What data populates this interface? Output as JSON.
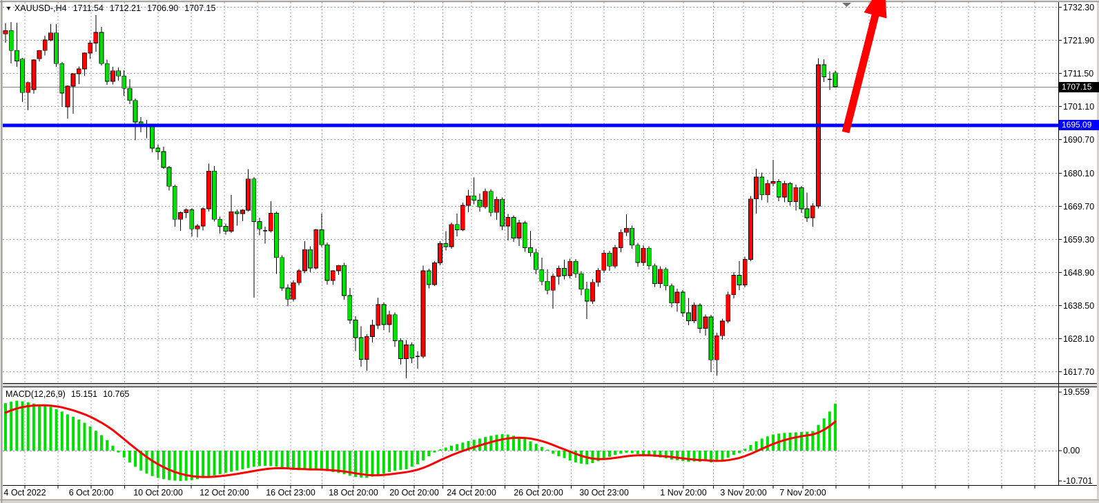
{
  "header": {
    "symbol": "XAUUSD-,H4",
    "open": "1711.54",
    "high": "1712.21",
    "low": "1706.90",
    "close": "1707.15"
  },
  "macd_panel": {
    "label": "MACD(12,26,9)",
    "macd_value": "15.151",
    "signal_value": "10.765",
    "axis_ticks": [
      "19.559",
      "0.00",
      "-10.701"
    ]
  },
  "price_axis": {
    "ticks": [
      "1732.30",
      "1721.90",
      "1711.50",
      "1701.10",
      "1690.70",
      "1680.10",
      "1669.70",
      "1659.30",
      "1648.90",
      "1638.50",
      "1628.10",
      "1617.70"
    ],
    "current_price_badge": "1707.15",
    "hline_badge": "1695.09"
  },
  "time_axis": {
    "labels": [
      {
        "text": "4 Oct 2022",
        "x": 36
      },
      {
        "text": "6 Oct 20:00",
        "x": 132
      },
      {
        "text": "10 Oct 20:00",
        "x": 229
      },
      {
        "text": "12 Oct 20:00",
        "x": 325
      },
      {
        "text": "16 Oct 23:00",
        "x": 421
      },
      {
        "text": "18 Oct 20:00",
        "x": 512
      },
      {
        "text": "20 Oct 20:00",
        "x": 600
      },
      {
        "text": "24 Oct 20:00",
        "x": 683
      },
      {
        "text": "26 Oct 20:00",
        "x": 780
      },
      {
        "text": "30 Oct 23:00",
        "x": 875
      },
      {
        "text": "1 Nov 20:00",
        "x": 990
      },
      {
        "text": "3 Nov 20:00",
        "x": 1077
      },
      {
        "text": "7 Nov 20:00",
        "x": 1163
      }
    ]
  },
  "annotations": {
    "trend_arrow": "up-arrow",
    "hline_price": 1695.09,
    "current_price": 1707.15
  },
  "colors": {
    "bull_body": "#ff0000",
    "bear_body": "#00e000",
    "wick": "#000000",
    "hline": "#0000ff",
    "current_price_line": "#808080",
    "grid": "#96a0ac",
    "macd_histogram": "#00e000",
    "macd_signal": "#ff0000",
    "badge_current_bg": "#000000",
    "badge_hline_bg": "#0000ff",
    "arrow": "#ff0000",
    "shift_marker": "#707070"
  },
  "chart_data": {
    "type": "candlestick",
    "symbol": "XAUUSD-",
    "timeframe": "H4",
    "title": "XAUUSD-,H4 1711.54 1712.21 1706.90 1707.15",
    "y_axis_range": [
      1613.0,
      1733.6
    ],
    "x_range": [
      "4 Oct 2022 00:00",
      "8 Nov 2022 20:00"
    ],
    "grid": "dashed",
    "candles": [
      [
        1723.8,
        1727.2,
        1721.0,
        1724.9
      ],
      [
        1724.9,
        1727.5,
        1714.5,
        1718.6
      ],
      [
        1718.6,
        1727.3,
        1713.5,
        1715.3
      ],
      [
        1715.9,
        1716.3,
        1702.4,
        1705.4
      ],
      [
        1705.4,
        1708.8,
        1699.8,
        1708.5
      ],
      [
        1706.3,
        1715.8,
        1705.0,
        1715.6
      ],
      [
        1716.0,
        1718.8,
        1715.2,
        1718.6
      ],
      [
        1718.6,
        1723.2,
        1717.0,
        1721.9
      ],
      [
        1721.9,
        1726.9,
        1721.5,
        1724.1
      ],
      [
        1724.1,
        1726.9,
        1713.5,
        1714.5
      ],
      [
        1714.5,
        1715.0,
        1700.9,
        1705.2
      ],
      [
        1700.9,
        1707.6,
        1697.2,
        1707.4
      ],
      [
        1707.4,
        1711.3,
        1698.7,
        1711.3
      ],
      [
        1711.3,
        1713.6,
        1708.0,
        1712.8
      ],
      [
        1712.8,
        1718.0,
        1710.6,
        1717.8
      ],
      [
        1717.8,
        1721.7,
        1715.9,
        1720.9
      ],
      [
        1720.9,
        1729.7,
        1718.2,
        1724.3
      ],
      [
        1724.3,
        1726.0,
        1713.9,
        1714.5
      ],
      [
        1714.5,
        1715.7,
        1707.8,
        1708.9
      ],
      [
        1708.9,
        1713.5,
        1707.9,
        1712.2
      ],
      [
        1712.2,
        1713.2,
        1709.1,
        1710.6
      ],
      [
        1710.6,
        1712.4,
        1704.3,
        1706.7
      ],
      [
        1706.7,
        1709.5,
        1701.8,
        1702.9
      ],
      [
        1702.9,
        1703.5,
        1690.4,
        1696.1
      ],
      [
        1696.1,
        1697.6,
        1692.9,
        1695.4
      ],
      [
        1695.4,
        1696.8,
        1691.0,
        1694.8
      ],
      [
        1694.8,
        1695.2,
        1686.6,
        1687.9
      ],
      [
        1687.9,
        1689.0,
        1684.2,
        1686.8
      ],
      [
        1686.8,
        1688.3,
        1681.4,
        1681.8
      ],
      [
        1681.8,
        1682.2,
        1674.6,
        1675.9
      ],
      [
        1675.9,
        1676.4,
        1663.2,
        1665.5
      ],
      [
        1665.5,
        1667.9,
        1661.9,
        1667.6
      ],
      [
        1667.6,
        1668.9,
        1665.9,
        1668.5
      ],
      [
        1668.5,
        1669.0,
        1660.1,
        1662.5
      ],
      [
        1662.5,
        1664.1,
        1659.8,
        1663.4
      ],
      [
        1663.4,
        1669.3,
        1662.0,
        1668.8
      ],
      [
        1668.8,
        1683.0,
        1668.0,
        1680.7
      ],
      [
        1680.7,
        1682.3,
        1664.8,
        1665.5
      ],
      [
        1665.5,
        1666.3,
        1661.0,
        1663.3
      ],
      [
        1663.3,
        1664.2,
        1660.7,
        1661.8
      ],
      [
        1661.8,
        1673.2,
        1661.2,
        1667.9
      ],
      [
        1667.9,
        1668.6,
        1663.5,
        1667.3
      ],
      [
        1667.3,
        1668.7,
        1664.9,
        1668.4
      ],
      [
        1668.4,
        1681.3,
        1668.0,
        1678.2
      ],
      [
        1678.2,
        1678.8,
        1640.9,
        1664.8
      ],
      [
        1664.8,
        1666.0,
        1660.5,
        1662.5
      ],
      [
        1662.5,
        1663.2,
        1657.9,
        1661.9
      ],
      [
        1661.9,
        1671.2,
        1661.3,
        1667.4
      ],
      [
        1667.4,
        1668.0,
        1648.3,
        1653.5
      ],
      [
        1653.5,
        1654.2,
        1643.0,
        1643.9
      ],
      [
        1643.9,
        1645.1,
        1638.2,
        1640.4
      ],
      [
        1640.4,
        1646.3,
        1639.7,
        1645.6
      ],
      [
        1645.6,
        1649.9,
        1644.8,
        1649.3
      ],
      [
        1649.3,
        1658.6,
        1648.6,
        1656.0
      ],
      [
        1656.0,
        1657.0,
        1648.9,
        1650.2
      ],
      [
        1650.2,
        1662.4,
        1649.8,
        1662.2
      ],
      [
        1662.2,
        1667.3,
        1656.8,
        1657.5
      ],
      [
        1657.5,
        1658.2,
        1645.0,
        1646.3
      ],
      [
        1646.3,
        1649.5,
        1644.9,
        1649.3
      ],
      [
        1649.3,
        1651.2,
        1648.0,
        1651.0
      ],
      [
        1651.0,
        1651.8,
        1640.2,
        1641.5
      ],
      [
        1641.5,
        1643.9,
        1632.6,
        1633.8
      ],
      [
        1633.8,
        1635.0,
        1624.1,
        1628.3
      ],
      [
        1628.3,
        1631.9,
        1619.2,
        1621.5
      ],
      [
        1621.5,
        1629.4,
        1617.9,
        1628.6
      ],
      [
        1628.6,
        1633.9,
        1626.8,
        1632.2
      ],
      [
        1632.2,
        1640.9,
        1631.0,
        1638.7
      ],
      [
        1638.7,
        1639.3,
        1630.7,
        1632.4
      ],
      [
        1632.4,
        1636.8,
        1629.9,
        1635.5
      ],
      [
        1635.5,
        1636.2,
        1625.4,
        1627.3
      ],
      [
        1627.3,
        1628.1,
        1619.9,
        1621.7
      ],
      [
        1621.7,
        1627.5,
        1615.5,
        1626.0
      ],
      [
        1626.0,
        1626.8,
        1620.3,
        1621.9
      ],
      [
        1621.9,
        1624.0,
        1618.5,
        1622.4
      ],
      [
        1622.4,
        1650.9,
        1621.8,
        1649.3
      ],
      [
        1649.3,
        1650.0,
        1643.8,
        1645.0
      ],
      [
        1645.0,
        1652.3,
        1644.6,
        1651.8
      ],
      [
        1651.8,
        1658.6,
        1651.0,
        1657.9
      ],
      [
        1657.9,
        1661.8,
        1655.7,
        1656.9
      ],
      [
        1656.9,
        1664.5,
        1656.2,
        1663.9
      ],
      [
        1663.9,
        1667.3,
        1660.1,
        1662.2
      ],
      [
        1662.2,
        1670.8,
        1661.8,
        1669.9
      ],
      [
        1669.9,
        1674.8,
        1667.7,
        1672.9
      ],
      [
        1672.9,
        1678.7,
        1670.2,
        1671.5
      ],
      [
        1671.5,
        1673.6,
        1667.9,
        1669.4
      ],
      [
        1669.4,
        1675.2,
        1668.8,
        1674.3
      ],
      [
        1674.3,
        1675.0,
        1666.4,
        1667.7
      ],
      [
        1667.7,
        1672.6,
        1665.3,
        1671.8
      ],
      [
        1671.8,
        1672.4,
        1662.1,
        1663.4
      ],
      [
        1663.4,
        1667.2,
        1658.9,
        1666.1
      ],
      [
        1666.1,
        1666.8,
        1658.4,
        1659.6
      ],
      [
        1659.6,
        1665.4,
        1657.1,
        1664.4
      ],
      [
        1664.4,
        1665.0,
        1655.3,
        1656.6
      ],
      [
        1656.6,
        1661.9,
        1653.8,
        1655.0
      ],
      [
        1655.0,
        1656.3,
        1648.2,
        1649.7
      ],
      [
        1649.7,
        1653.4,
        1644.8,
        1646.0
      ],
      [
        1646.0,
        1649.8,
        1641.9,
        1643.2
      ],
      [
        1643.2,
        1648.5,
        1637.4,
        1647.6
      ],
      [
        1647.6,
        1650.9,
        1645.0,
        1650.1
      ],
      [
        1650.1,
        1652.8,
        1646.6,
        1647.8
      ],
      [
        1647.8,
        1653.1,
        1646.9,
        1652.3
      ],
      [
        1652.3,
        1653.0,
        1647.1,
        1648.4
      ],
      [
        1648.4,
        1649.2,
        1641.6,
        1643.5
      ],
      [
        1643.5,
        1645.9,
        1634.2,
        1639.8
      ],
      [
        1639.8,
        1646.7,
        1638.9,
        1645.7
      ],
      [
        1645.7,
        1650.2,
        1644.3,
        1649.5
      ],
      [
        1649.5,
        1655.8,
        1648.7,
        1654.9
      ],
      [
        1654.9,
        1655.6,
        1649.3,
        1650.8
      ],
      [
        1650.8,
        1657.4,
        1650.1,
        1656.6
      ],
      [
        1656.6,
        1662.3,
        1655.2,
        1661.4
      ],
      [
        1661.4,
        1667.1,
        1660.3,
        1662.7
      ],
      [
        1662.7,
        1663.5,
        1656.2,
        1657.4
      ],
      [
        1657.4,
        1658.1,
        1650.6,
        1651.9
      ],
      [
        1651.9,
        1657.3,
        1650.8,
        1656.4
      ],
      [
        1656.4,
        1657.0,
        1649.7,
        1650.9
      ],
      [
        1650.9,
        1651.6,
        1644.2,
        1645.3
      ],
      [
        1645.3,
        1650.7,
        1643.9,
        1649.8
      ],
      [
        1649.8,
        1650.4,
        1643.1,
        1644.6
      ],
      [
        1644.6,
        1645.3,
        1637.8,
        1639.2
      ],
      [
        1639.2,
        1643.7,
        1636.4,
        1642.6
      ],
      [
        1642.6,
        1643.3,
        1634.9,
        1636.1
      ],
      [
        1636.1,
        1640.8,
        1632.2,
        1633.6
      ],
      [
        1633.6,
        1639.4,
        1632.8,
        1638.5
      ],
      [
        1638.5,
        1639.1,
        1629.7,
        1631.2
      ],
      [
        1631.2,
        1635.6,
        1628.9,
        1634.8
      ],
      [
        1634.8,
        1635.4,
        1617.5,
        1621.3
      ],
      [
        1621.3,
        1629.8,
        1616.4,
        1628.9
      ],
      [
        1628.9,
        1634.3,
        1627.6,
        1633.5
      ],
      [
        1633.5,
        1642.7,
        1632.9,
        1641.8
      ],
      [
        1641.8,
        1648.9,
        1640.7,
        1647.9
      ],
      [
        1647.9,
        1652.4,
        1643.2,
        1644.9
      ],
      [
        1644.9,
        1653.8,
        1644.1,
        1652.9
      ],
      [
        1652.9,
        1672.8,
        1652.3,
        1671.9
      ],
      [
        1671.9,
        1681.4,
        1667.3,
        1678.8
      ],
      [
        1678.8,
        1680.2,
        1671.5,
        1673.2
      ],
      [
        1673.2,
        1677.9,
        1670.8,
        1676.8
      ],
      [
        1676.8,
        1684.2,
        1675.9,
        1677.4
      ],
      [
        1677.4,
        1678.1,
        1671.2,
        1672.5
      ],
      [
        1672.5,
        1677.6,
        1670.9,
        1676.7
      ],
      [
        1676.7,
        1677.3,
        1669.8,
        1671.1
      ],
      [
        1671.1,
        1676.4,
        1668.3,
        1675.4
      ],
      [
        1675.4,
        1676.0,
        1667.5,
        1668.8
      ],
      [
        1668.8,
        1673.9,
        1664.7,
        1666.0
      ],
      [
        1666.0,
        1670.6,
        1663.2,
        1669.7
      ],
      [
        1669.7,
        1716.2,
        1668.9,
        1714.1
      ],
      [
        1714.1,
        1715.8,
        1708.7,
        1710.3
      ],
      [
        1709.8,
        1712.0,
        1706.2,
        1709.5
      ],
      [
        1711.54,
        1712.21,
        1706.9,
        1707.15
      ]
    ],
    "macd_histogram": [
      15.3,
      15.8,
      16.1,
      15.9,
      15.6,
      15.2,
      14.9,
      14.6,
      14.1,
      13.4,
      12.6,
      11.7,
      10.9,
      10.0,
      9.0,
      7.8,
      6.4,
      5.0,
      3.4,
      1.6,
      -0.6,
      -2.2,
      -3.8,
      -5.2,
      -6.4,
      -7.4,
      -8.2,
      -8.8,
      -9.2,
      -9.5,
      -9.7,
      -9.8,
      -9.7,
      -9.5,
      -9.2,
      -8.8,
      -8.4,
      -8.0,
      -7.6,
      -7.2,
      -6.8,
      -6.4,
      -6.0,
      -5.6,
      -5.2,
      -5.0,
      -4.9,
      -5.0,
      -5.2,
      -5.6,
      -6.0,
      -6.2,
      -6.3,
      -6.2,
      -6.3,
      -6.2,
      -6.3,
      -6.6,
      -6.9,
      -7.2,
      -7.6,
      -8.1,
      -8.5,
      -8.7,
      -8.8,
      -8.4,
      -7.9,
      -7.4,
      -6.9,
      -6.5,
      -6.2,
      -6.0,
      -5.2,
      -4.4,
      -3.2,
      -1.8,
      -0.6,
      0.4,
      1.0,
      1.6,
      2.1,
      2.6,
      3.1,
      3.5,
      3.9,
      4.4,
      4.8,
      5.1,
      5.3,
      5.2,
      4.8,
      4.4,
      3.8,
      3.0,
      2.2,
      1.2,
      0.3,
      -1.0,
      -1.8,
      -2.4,
      -3.2,
      -3.8,
      -4.2,
      -4.4,
      -4.0,
      -3.4,
      -2.6,
      -2.0,
      -1.4,
      -1.0,
      -0.7,
      -0.8,
      -1.1,
      -1.3,
      -1.6,
      -2.0,
      -2.2,
      -2.5,
      -2.9,
      -3.1,
      -3.4,
      -3.6,
      -3.5,
      -3.6,
      -3.4,
      -3.8,
      -3.6,
      -3.1,
      -2.3,
      -1.4,
      -0.8,
      0.6,
      1.8,
      3.0,
      3.9,
      4.6,
      5.2,
      5.5,
      5.7,
      5.8,
      5.9,
      6.0,
      6.1,
      6.3,
      8.3,
      10.4,
      12.6,
      15.151
    ],
    "macd_settings": "12,26,9",
    "macd_axis_range": [
      -10.701,
      19.559
    ]
  }
}
